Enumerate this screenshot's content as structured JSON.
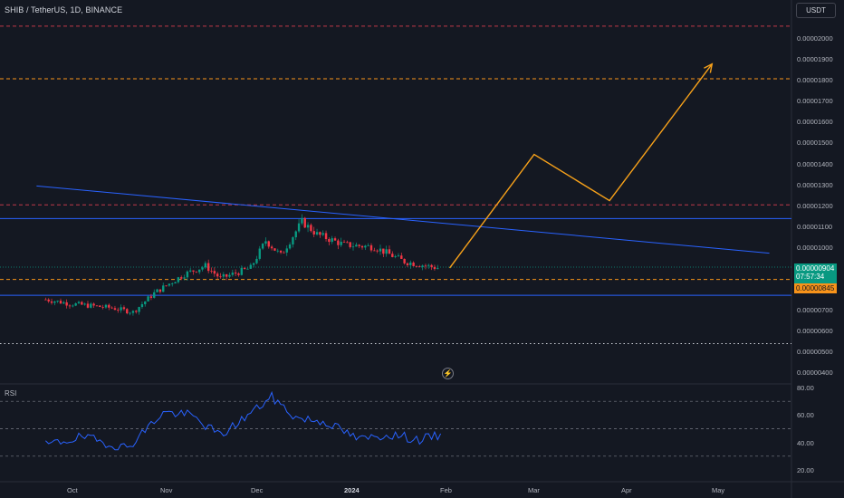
{
  "header": {
    "title": "SHIB / TetherUS, 1D, BINANCE",
    "currency_button": "USDT"
  },
  "price_axis": {
    "ticks": [
      "0.00002000",
      "0.00001900",
      "0.00001800",
      "0.00001700",
      "0.00001600",
      "0.00001500",
      "0.00001400",
      "0.00001300",
      "0.00001200",
      "0.00001100",
      "0.00001000",
      "0.00000700",
      "0.00000600",
      "0.00000500",
      "0.00000400"
    ],
    "last_price": "0.00000904",
    "countdown": "07:57:34",
    "marked_price": "0.00000845"
  },
  "rsi_panel": {
    "label": "RSI",
    "ticks": [
      "80.00",
      "60.00",
      "40.00",
      "20.00"
    ]
  },
  "time_axis": {
    "labels": [
      "Oct",
      "Nov",
      "Dec",
      "2024",
      "Feb",
      "Mar",
      "Apr",
      "May"
    ]
  },
  "colors": {
    "background": "#141822",
    "bull": "#089981",
    "bear": "#f23645",
    "trendline": "#2962ff",
    "projection": "#f7a11a",
    "rsi_line": "#2962ff",
    "dashed_red": "#c0384a",
    "dashed_orange": "#f7931a"
  },
  "chart_data": {
    "type": "line",
    "title": "SHIB / TetherUS, 1D, BINANCE",
    "price_series": [
      {
        "x": "Sep 23",
        "y": 7.5e-06
      },
      {
        "x": "Oct 1",
        "y": 7.3e-06
      },
      {
        "x": "Oct 15",
        "y": 7.1e-06
      },
      {
        "x": "Oct 22",
        "y": 6.9e-06
      },
      {
        "x": "Oct 29",
        "y": 7.8e-06
      },
      {
        "x": "Nov 8",
        "y": 8.7e-06
      },
      {
        "x": "Nov 15",
        "y": 9.1e-06
      },
      {
        "x": "Nov 20",
        "y": 8.5e-06
      },
      {
        "x": "Nov 30",
        "y": 9e-06
      },
      {
        "x": "Dec 5",
        "y": 1.03e-05
      },
      {
        "x": "Dec 10",
        "y": 9.6e-06
      },
      {
        "x": "Dec 17",
        "y": 1.12e-05
      },
      {
        "x": "Dec 22",
        "y": 1.06e-05
      },
      {
        "x": "Dec 31",
        "y": 1.01e-05
      },
      {
        "x": "Jan 10",
        "y": 1e-05
      },
      {
        "x": "Jan 20",
        "y": 9.3e-06
      },
      {
        "x": "Jan 31",
        "y": 9e-06
      }
    ],
    "rsi_series": [
      {
        "x": "Sep 23",
        "y": 38
      },
      {
        "x": "Oct 5",
        "y": 44
      },
      {
        "x": "Oct 20",
        "y": 36
      },
      {
        "x": "Nov 1",
        "y": 62
      },
      {
        "x": "Nov 10",
        "y": 60
      },
      {
        "x": "Nov 20",
        "y": 45
      },
      {
        "x": "Dec 1",
        "y": 63
      },
      {
        "x": "Dec 7",
        "y": 73
      },
      {
        "x": "Dec 15",
        "y": 58
      },
      {
        "x": "Dec 25",
        "y": 55
      },
      {
        "x": "Jan 5",
        "y": 42
      },
      {
        "x": "Jan 15",
        "y": 46
      },
      {
        "x": "Jan 25",
        "y": 42
      },
      {
        "x": "Feb 1",
        "y": 45
      }
    ],
    "projection": [
      {
        "x": "Feb 4",
        "y": 9e-06
      },
      {
        "x": "Mar 3",
        "y": 1.44e-05
      },
      {
        "x": "Mar 28",
        "y": 1.22e-05
      },
      {
        "x": "May 1",
        "y": 1.87e-05
      }
    ],
    "horizontal_levels": [
      {
        "price": 2.05e-05,
        "style": "dashed-red"
      },
      {
        "price": 1.8e-05,
        "style": "dashed-orange"
      },
      {
        "price": 1.2e-05,
        "style": "dashed-red"
      },
      {
        "price": 1.135e-05,
        "style": "solid-blue"
      },
      {
        "price": 8.45e-06,
        "style": "dashed-orange"
      },
      {
        "price": 7.7e-06,
        "style": "solid-blue"
      },
      {
        "price": 5.4e-06,
        "style": "dotted-white"
      }
    ],
    "trendline": [
      {
        "x": "Sep 20",
        "y": 1.29e-05
      },
      {
        "x": "May 20",
        "y": 9.7e-06
      }
    ],
    "rsi_levels": [
      70,
      50,
      30
    ],
    "ylim_price": [
      3.9e-06,
      2.08e-05
    ],
    "ylim_rsi": [
      20,
      80
    ]
  }
}
